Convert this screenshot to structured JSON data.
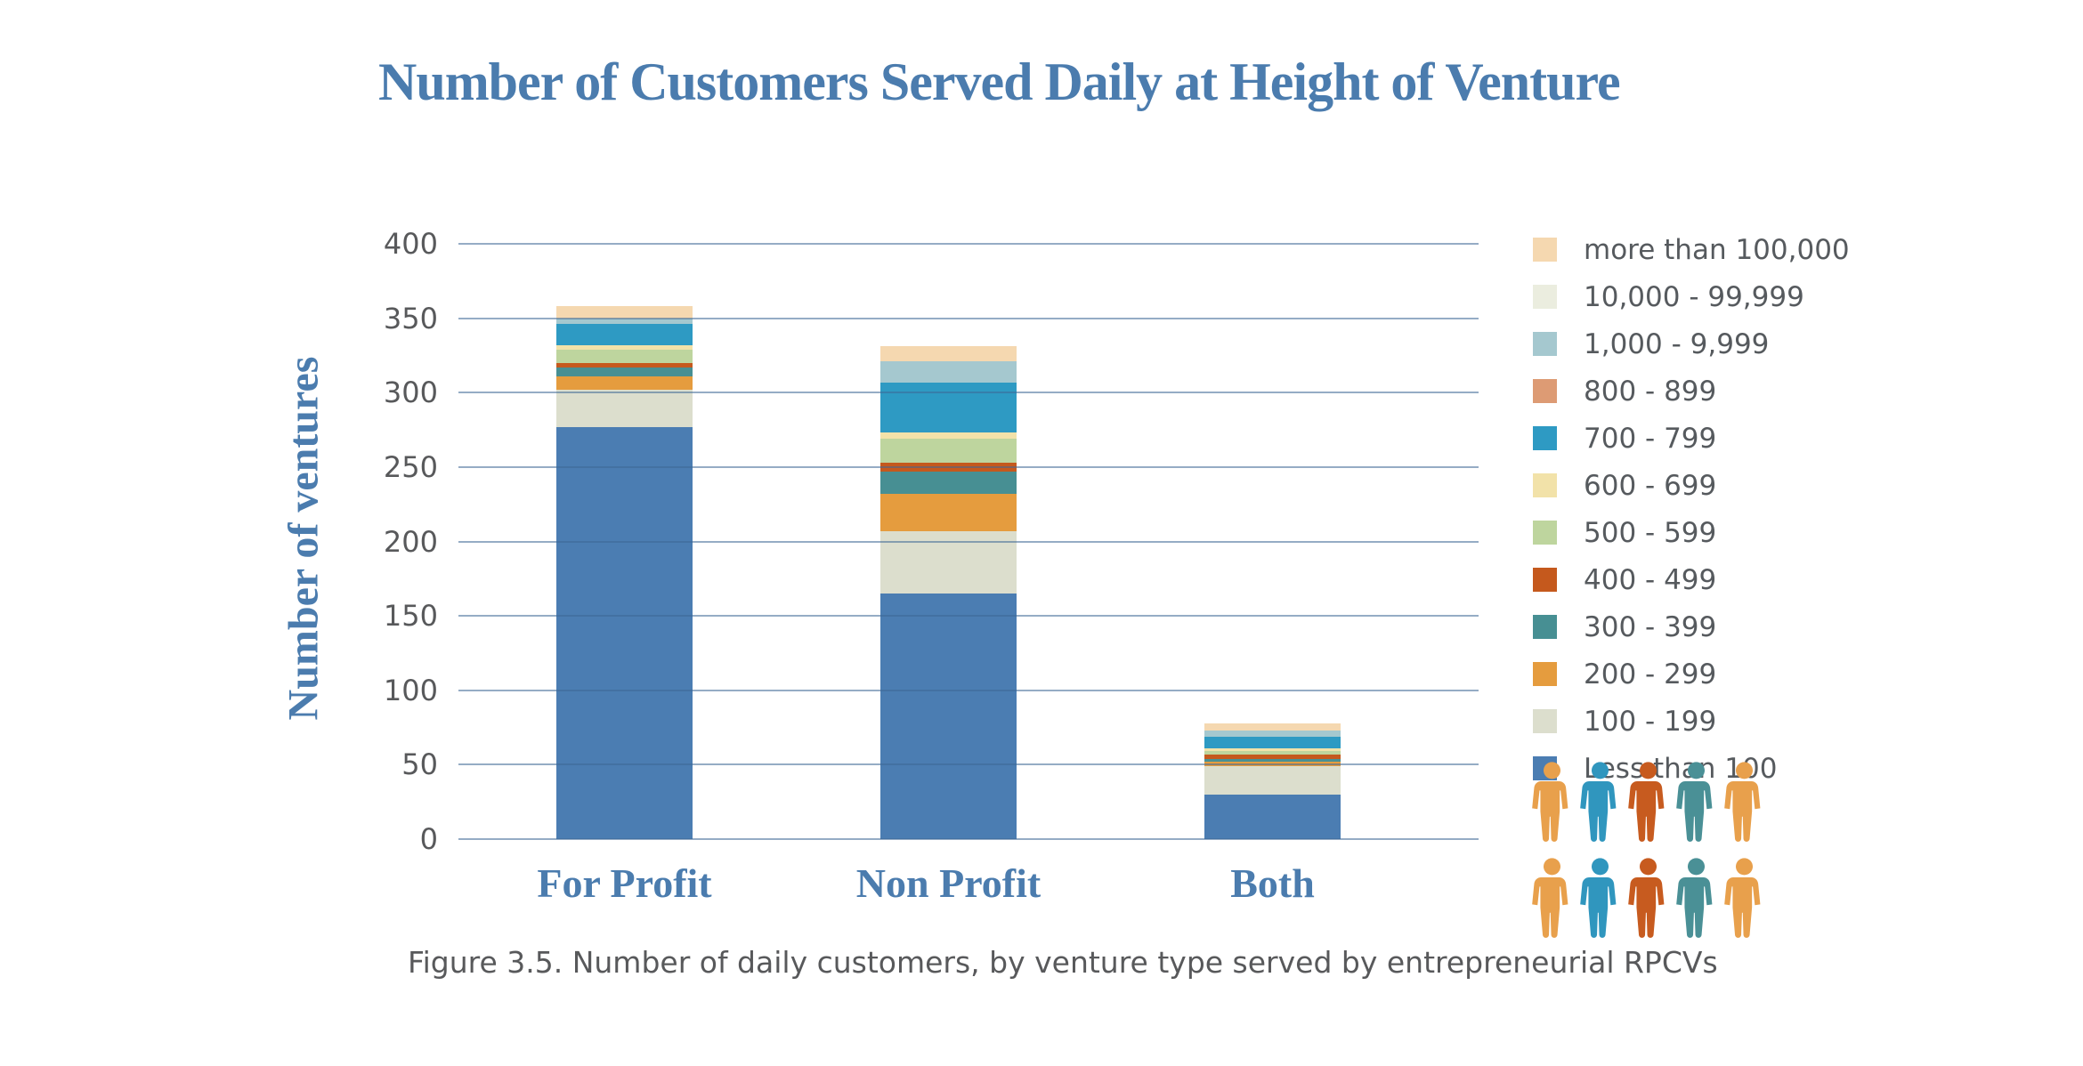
{
  "title": "Number of Customers Served Daily at Height of Venture",
  "y_axis_title": "Number of ventures",
  "caption": "Figure 3.5. Number of daily customers, by venture type served by entrepreneurial RPCVs",
  "colors": {
    "title_text": "#4b7cae",
    "category_text": "#4b7cae",
    "tick_text": "#58595b",
    "legend_text": "#565a5e",
    "caption_text": "#58595b",
    "gridline": "#7ca3cb"
  },
  "chart_data": {
    "type": "bar",
    "stacked": true,
    "title": "Number of Customers Served Daily at Height of Venture",
    "xlabel": "",
    "ylabel": "Number of ventures",
    "categories": [
      "For Profit",
      "Non Profit",
      "Both"
    ],
    "series": [
      {
        "name": "Less than 100",
        "color": "#4b7db2",
        "values": [
          277,
          165,
          30
        ]
      },
      {
        "name": "100 - 199",
        "color": "#dcdecd",
        "values": [
          25,
          42,
          19
        ]
      },
      {
        "name": "200 - 299",
        "color": "#e59c3e",
        "values": [
          9,
          25,
          3
        ]
      },
      {
        "name": "300 - 399",
        "color": "#478f93",
        "values": [
          6,
          15,
          2
        ]
      },
      {
        "name": "400 - 499",
        "color": "#c5591d",
        "values": [
          3,
          6,
          3
        ]
      },
      {
        "name": "500 - 599",
        "color": "#bed59e",
        "values": [
          9,
          16,
          2
        ]
      },
      {
        "name": "600 - 699",
        "color": "#f2e2a9",
        "values": [
          3,
          4,
          2
        ]
      },
      {
        "name": "700 - 799",
        "color": "#2e9ac3",
        "values": [
          14,
          34,
          8
        ]
      },
      {
        "name": "800 - 899",
        "color": "#dd9b74",
        "values": [
          0,
          0,
          0
        ]
      },
      {
        "name": "1,000 - 9,999",
        "color": "#a5c8cf",
        "values": [
          4,
          14,
          4
        ]
      },
      {
        "name": "10,000 - 99,999",
        "color": "#ebeddf",
        "values": [
          0,
          0,
          0
        ]
      },
      {
        "name": "more than 100,000",
        "color": "#f5d8b0",
        "values": [
          8,
          10,
          5
        ]
      }
    ],
    "totals": [
      358,
      331,
      78
    ],
    "ylim": [
      0,
      400
    ],
    "yticks": [
      0,
      50,
      100,
      150,
      200,
      250,
      300,
      350,
      400
    ],
    "grid": true,
    "legend_position": "right",
    "legend_order": "top_is_last_series"
  },
  "pictogram": {
    "rows": 2,
    "per_row": 5,
    "row_colors": [
      "#e8a04c",
      "#3096be",
      "#c75b1f",
      "#4a9096",
      "#e8a04c"
    ]
  }
}
